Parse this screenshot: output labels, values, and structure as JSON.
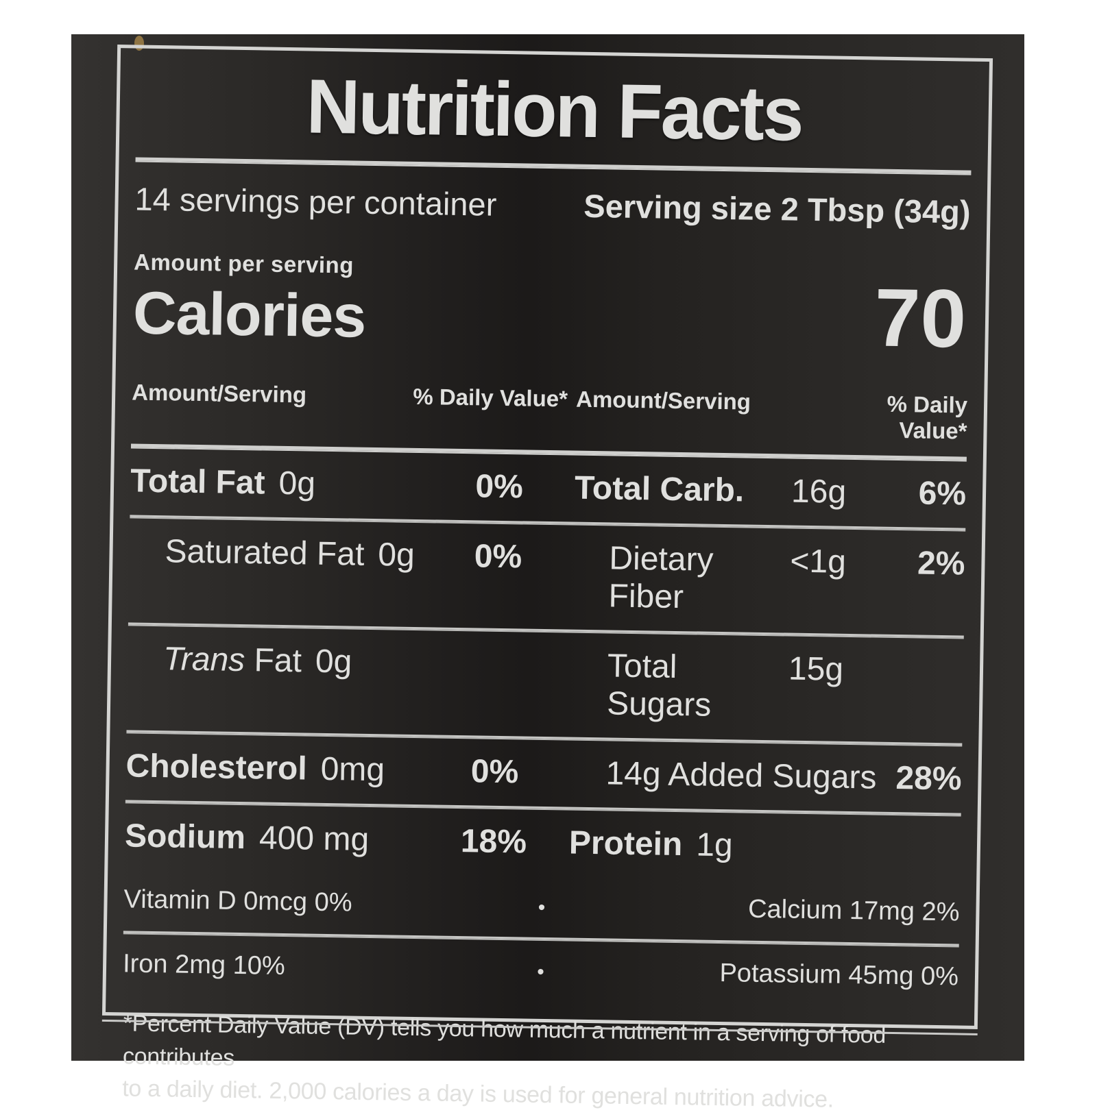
{
  "label": {
    "title": "Nutrition Facts",
    "servings_line": "14 servings per container",
    "serving_size": "Serving size 2 Tbsp (34g)",
    "amount_per_serving": "Amount per serving",
    "calories_label": "Calories",
    "calories_value": "70",
    "columns": {
      "amount_header": "Amount/Serving",
      "dv_header": "% Daily Value*"
    },
    "nutrient_rows": [
      {
        "left": {
          "name": "Total Fat",
          "amount": "0g",
          "dv": "0%"
        },
        "right": {
          "name": "Total Carb.",
          "amount": "16g",
          "dv": "6%"
        }
      },
      {
        "left": {
          "name": "Saturated Fat",
          "amount": "0g",
          "dv": "0%"
        },
        "right": {
          "name": "Dietary Fiber",
          "amount": "<1g",
          "dv": "2%"
        }
      },
      {
        "left": {
          "name_italic": "Trans",
          "name_rest": "Fat",
          "amount": "0g"
        },
        "right": {
          "name": "Total Sugars",
          "amount": "15g"
        }
      },
      {
        "left": {
          "name": "Cholesterol",
          "amount": "0mg",
          "dv": "0%"
        },
        "right": {
          "name": "14g Added Sugars",
          "dv": "28%"
        }
      },
      {
        "left": {
          "name": "Sodium",
          "amount": "400 mg",
          "dv": "18%"
        },
        "right": {
          "name": "Protein",
          "amount": "1g"
        }
      }
    ],
    "micro_rows": [
      {
        "left": "Vitamin D  0mcg  0%",
        "bullet": "•",
        "right": "Calcium 17mg  2%"
      },
      {
        "left": "Iron 2mg  10%",
        "bullet": "•",
        "right": "Potassium 45mg  0%"
      }
    ],
    "footnote_line1": "*Percent Daily Value (DV) tells you how much a nutrient in a serving of food contributes",
    "footnote_line2": "to a daily diet. 2,000 calories a day is used for general nutrition advice."
  }
}
